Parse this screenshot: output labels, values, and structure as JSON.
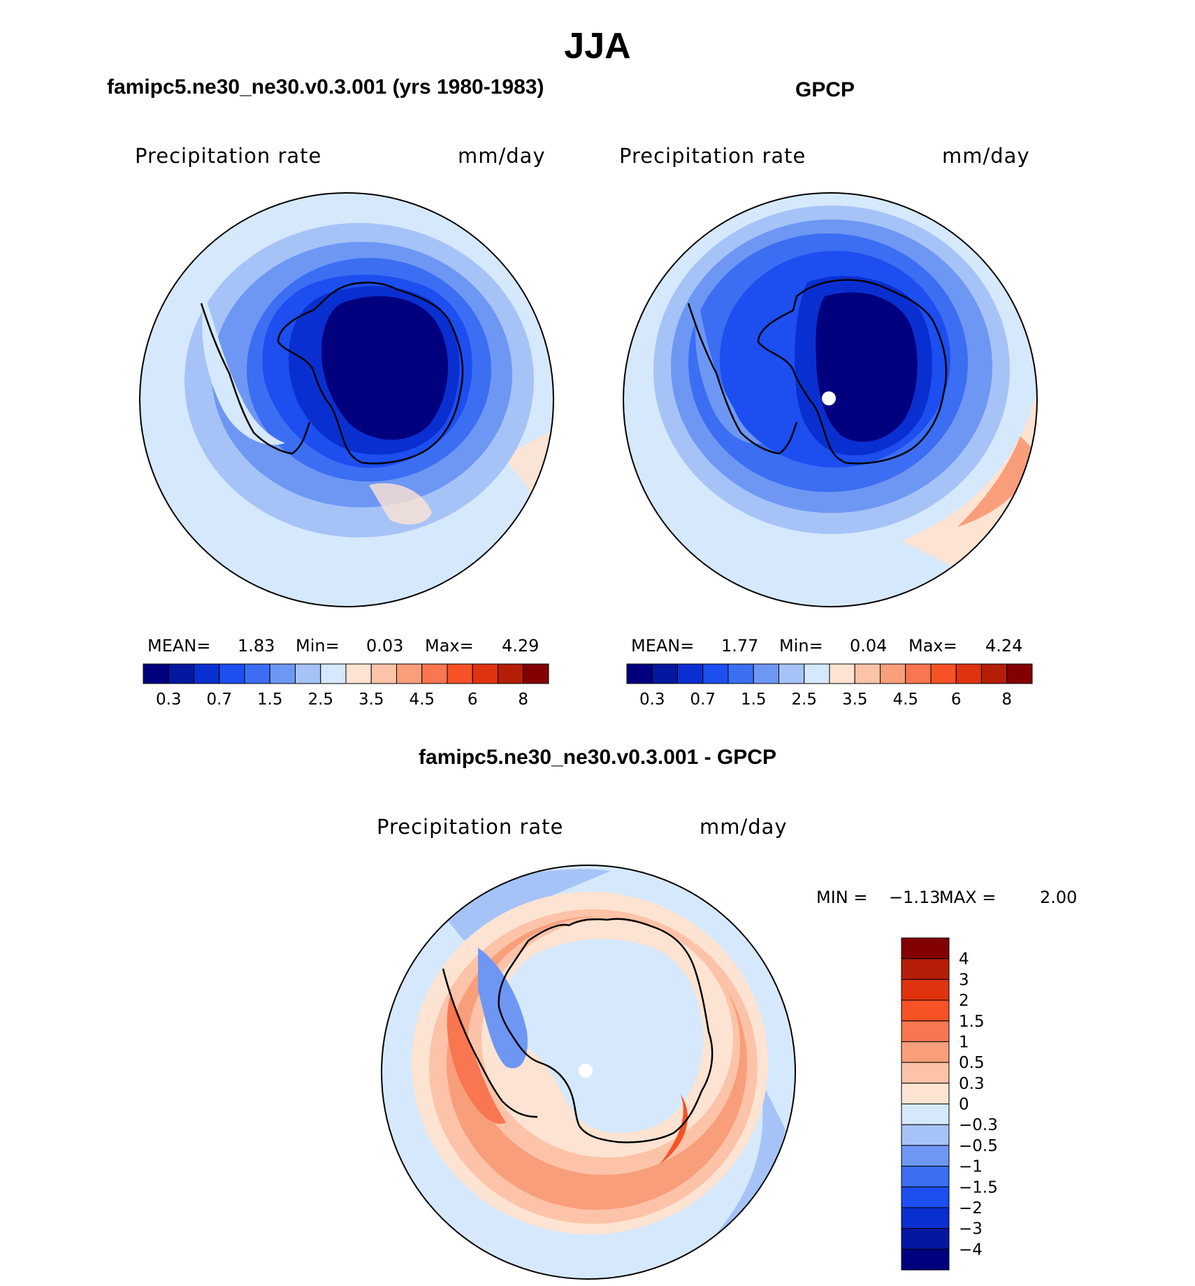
{
  "figure": {
    "title": "JJA"
  },
  "panels": {
    "left": {
      "title": "famipc5.ne30_ne30.v0.3.001 (yrs 1980-1983)",
      "variable": "Precipitation  rate",
      "units": "mm/day",
      "mean_label": "MEAN=",
      "mean_value": "1.83",
      "min_label": "Min=",
      "min_value": "0.03",
      "max_label": "Max=",
      "max_value": "4.29"
    },
    "right": {
      "title": "GPCP",
      "variable": "Precipitation  rate",
      "units": "mm/day",
      "mean_label": "MEAN=",
      "mean_value": "1.77",
      "min_label": "Min=",
      "min_value": "0.04",
      "max_label": "Max=",
      "max_value": "4.24"
    },
    "diff": {
      "title": "famipc5.ne30_ne30.v0.3.001 - GPCP",
      "variable": "Precipitation  rate",
      "units": "mm/day",
      "min_label": "MIN  =",
      "min_value": "−1.13",
      "max_label": "MAX  =",
      "max_value": "2.00"
    }
  },
  "colorbars": {
    "sequential": {
      "colors": [
        "#00007f",
        "#0417a0",
        "#0a2fd0",
        "#1c4ef0",
        "#3b6ef2",
        "#6e97f4",
        "#a6c3f8",
        "#d6e8fb",
        "#fde3d2",
        "#fcc3a8",
        "#f99e7a",
        "#f87650",
        "#f65226",
        "#e03310",
        "#b51e06",
        "#830000"
      ],
      "tick_labels": [
        "0.3",
        "0.7",
        "1.5",
        "2.5",
        "3.5",
        "4.5",
        "6",
        "8"
      ]
    },
    "diverging": {
      "colors": [
        "#830000",
        "#b51e06",
        "#e03310",
        "#f65226",
        "#f87650",
        "#f99e7a",
        "#fcc3a8",
        "#fde3d2",
        "#d6e8fb",
        "#a6c3f8",
        "#6e97f4",
        "#3b6ef2",
        "#1c4ef0",
        "#0a2fd0",
        "#0417a0",
        "#00007f"
      ],
      "tick_labels": [
        "4",
        "3",
        "2",
        "1.5",
        "1",
        "0.5",
        "0.3",
        "0",
        "−0.3",
        "−0.5",
        "−1",
        "−1.5",
        "−2",
        "−3",
        "−4"
      ]
    }
  }
}
